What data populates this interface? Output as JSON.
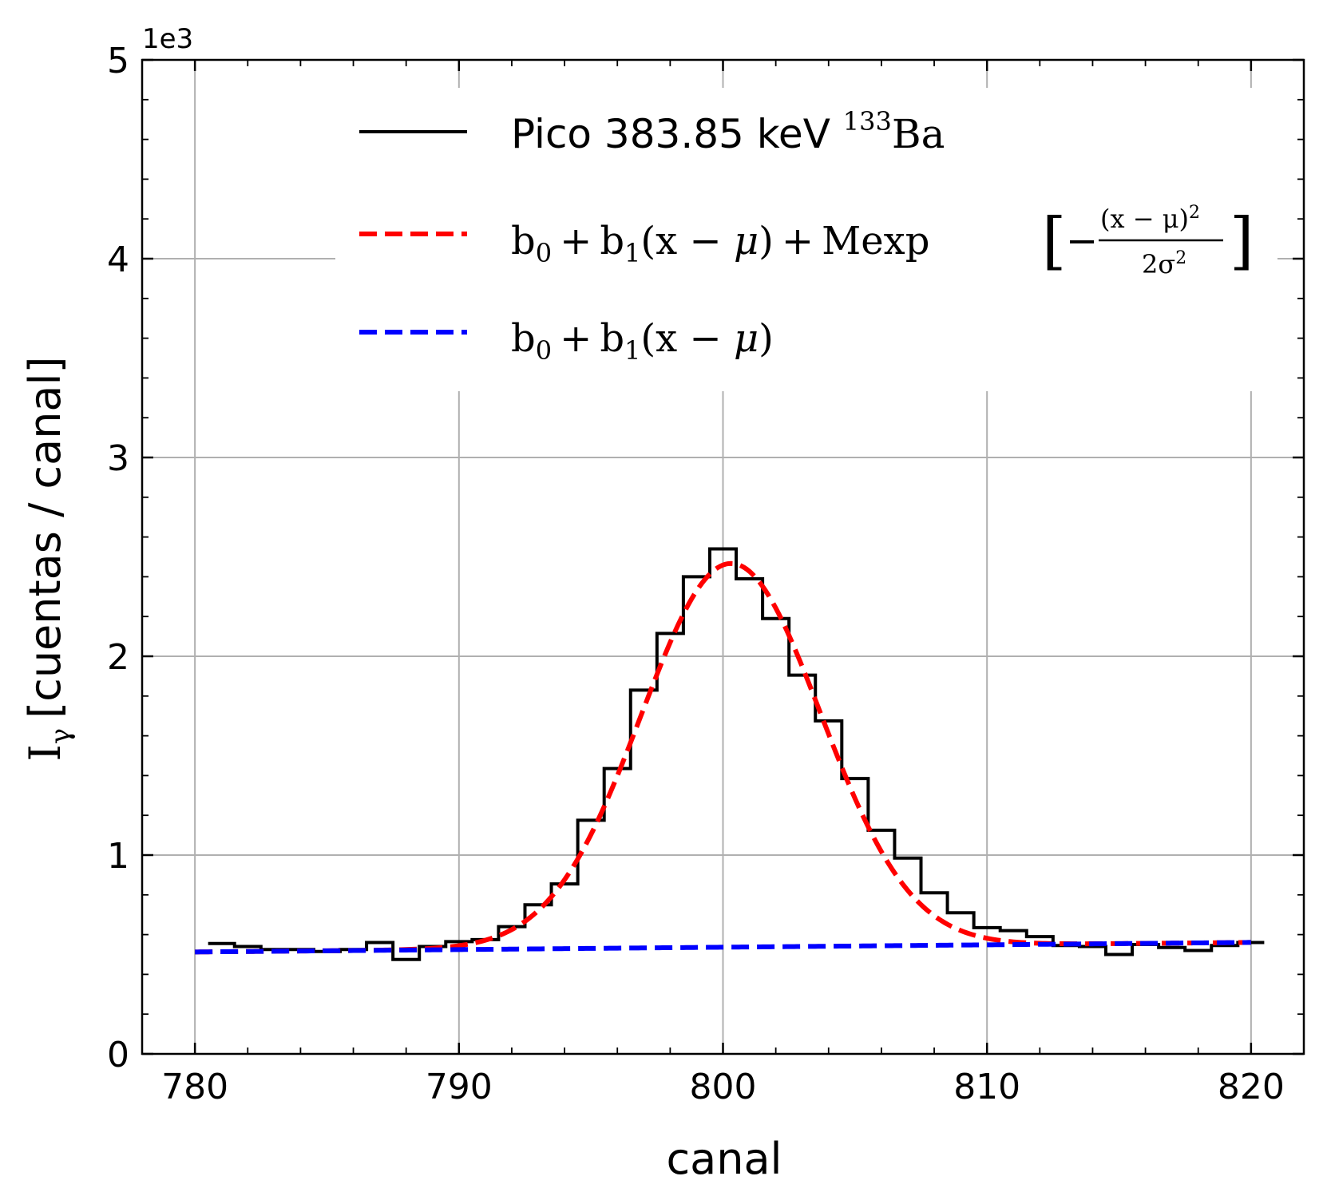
{
  "chart_data": {
    "type": "line",
    "xlabel": "canal",
    "ylabel_prefix": "I",
    "ylabel_sub": "γ",
    "ylabel_rest": "[cuentas / canal]",
    "y_offset_label": "1e3",
    "xlim": [
      778,
      822
    ],
    "ylim": [
      0,
      5
    ],
    "x_ticks": [
      780,
      790,
      800,
      810,
      820
    ],
    "x_tick_labels": [
      "780",
      "790",
      "800",
      "810",
      "820"
    ],
    "y_ticks": [
      0,
      1,
      2,
      3,
      4,
      5
    ],
    "y_tick_labels": [
      "0",
      "1",
      "2",
      "3",
      "4",
      "5"
    ],
    "grid": true,
    "legend_position": "top-right",
    "series": [
      {
        "name": "Pico 383.85 keV",
        "name_sup": "133",
        "name_elem": "Ba",
        "style": "step",
        "color": "#000000",
        "x": [
          781,
          782,
          783,
          784,
          785,
          786,
          787,
          788,
          789,
          790,
          791,
          792,
          793,
          794,
          795,
          796,
          797,
          798,
          799,
          800,
          801,
          802,
          803,
          804,
          805,
          806,
          807,
          808,
          809,
          810,
          811,
          812,
          813,
          814,
          815,
          816,
          817,
          818,
          819,
          820
        ],
        "values": [
          0.555,
          0.54,
          0.525,
          0.525,
          0.515,
          0.525,
          0.56,
          0.475,
          0.54,
          0.565,
          0.575,
          0.64,
          0.75,
          0.855,
          1.175,
          1.435,
          1.83,
          2.115,
          2.4,
          2.54,
          2.39,
          2.19,
          1.905,
          1.675,
          1.385,
          1.125,
          0.985,
          0.81,
          0.71,
          0.635,
          0.62,
          0.59,
          0.545,
          0.54,
          0.5,
          0.55,
          0.535,
          0.52,
          0.545,
          0.56
        ]
      },
      {
        "name": "b0 + b1(x − μ) + M exp[−(x − μ)² / 2σ²]",
        "style": "dashed",
        "color": "#ff0000",
        "model": {
          "b0": 0.537,
          "b1": 0.0012,
          "M": 1.93,
          "mu": 800.3,
          "sigma": 3.4
        }
      },
      {
        "name": "b0 + b1(x − μ)",
        "style": "dashed",
        "color": "#0000ff",
        "model": {
          "b0": 0.537,
          "b1": 0.0012,
          "mu": 800.3
        }
      }
    ],
    "legend": {
      "entry1_text": "Pico 383.85 keV ",
      "entry1_sup": "133",
      "entry1_elem": "Ba",
      "b": "b",
      "sub0": "0",
      "sub1": "1",
      "plus": "+",
      "paren_open": "(x − ",
      "mu": "μ",
      "paren_close": ")",
      "mexp": "Mexp",
      "bracket_open": "[",
      "bracket_close": "]",
      "minus": "−",
      "frac_num": "(x − μ)",
      "frac_num_sup": "2",
      "frac_den": "2σ",
      "frac_den_sup": "2"
    }
  }
}
